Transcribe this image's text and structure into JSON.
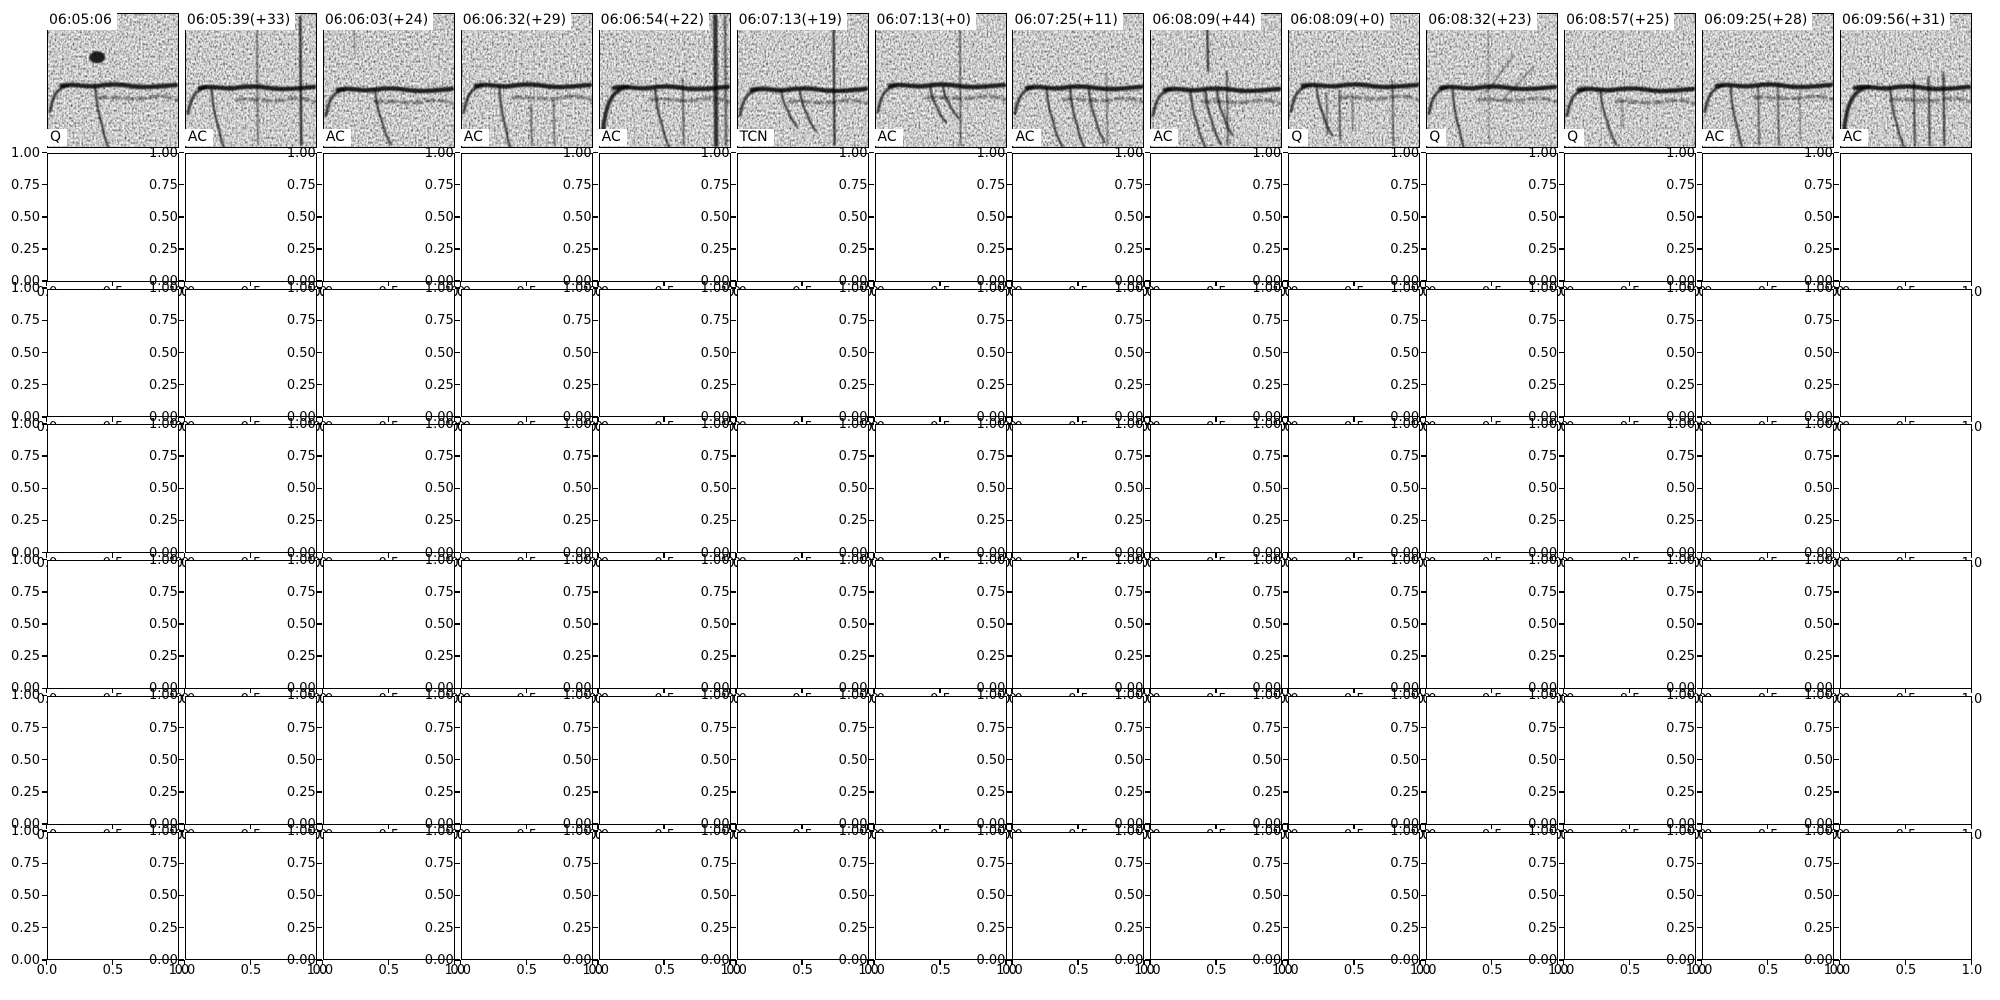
{
  "chart_data": {
    "type": "heatmap",
    "title": "",
    "layout": "14 columns x 7 rows; top row = spectrogram thumbnails with time titles and call-type labels, below = 6 rows of empty axes",
    "panels": [
      {
        "title": "06:05:06",
        "label": "Q"
      },
      {
        "title": "06:05:39(+33)",
        "label": "AC"
      },
      {
        "title": "06:06:03(+24)",
        "label": "AC"
      },
      {
        "title": "06:06:32(+29)",
        "label": "AC"
      },
      {
        "title": "06:06:54(+22)",
        "label": "AC"
      },
      {
        "title": "06:07:13(+19)",
        "label": "TCN"
      },
      {
        "title": "06:07:13(+0)",
        "label": "AC"
      },
      {
        "title": "06:07:25(+11)",
        "label": "AC"
      },
      {
        "title": "06:08:09(+44)",
        "label": "AC"
      },
      {
        "title": "06:08:09(+0)",
        "label": "Q"
      },
      {
        "title": "06:08:32(+23)",
        "label": "Q"
      },
      {
        "title": "06:08:57(+25)",
        "label": "Q"
      },
      {
        "title": "06:09:25(+28)",
        "label": "AC"
      },
      {
        "title": "06:09:56(+31)",
        "label": "AC"
      }
    ],
    "grid": {
      "rows": 6,
      "cols": 14,
      "xlim": [
        0.0,
        1.0
      ],
      "ylim": [
        0.0,
        1.0
      ],
      "xticks": [
        0.0,
        0.5,
        1.0
      ],
      "yticks": [
        0.0,
        0.25,
        0.5,
        0.75,
        1.0
      ],
      "xtick_labels": [
        "0.0",
        "0.5",
        "1.0"
      ],
      "ytick_labels": [
        "1.00",
        "0.75",
        "0.50",
        "0.25",
        "0.00"
      ],
      "series": []
    }
  },
  "colors": {
    "foreground": "#000000",
    "background": "#ffffff"
  }
}
